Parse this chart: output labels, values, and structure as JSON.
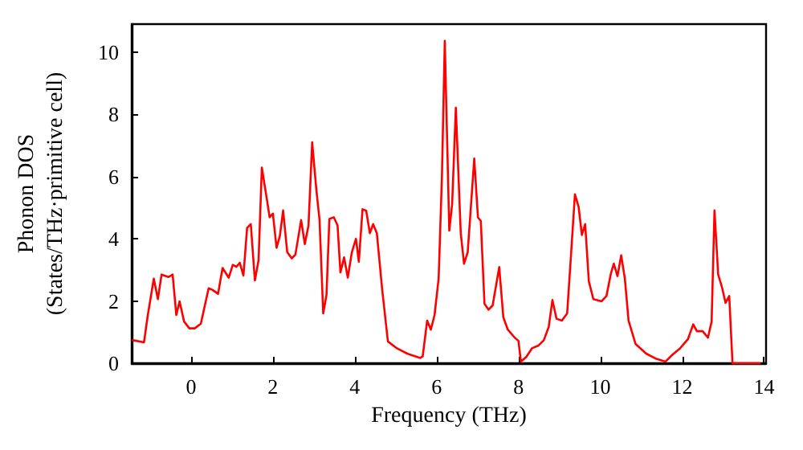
{
  "chart_data": {
    "type": "line",
    "xlabel": "Frequency (THz)",
    "ylabel": "Phonon DOS\n(States/THz·primitive cell)",
    "xlim": [
      -1.45,
      14.05
    ],
    "xticks": [
      0,
      2,
      4,
      6,
      8,
      10,
      12,
      14
    ],
    "ylim": [
      0,
      10.9
    ],
    "yticks": [
      0,
      2,
      4,
      6,
      8,
      10
    ],
    "marker": "none",
    "line_style": "solid",
    "series": [
      {
        "color": "#ff0000",
        "x": [
          -1.42,
          -1.15,
          -1.06,
          -0.91,
          -0.81,
          -0.72,
          -0.55,
          -0.45,
          -0.36,
          -0.28,
          -0.17,
          -0.04,
          0.09,
          0.24,
          0.43,
          0.52,
          0.66,
          0.77,
          0.92,
          1.02,
          1.11,
          1.19,
          1.28,
          1.37,
          1.46,
          1.56,
          1.65,
          1.73,
          1.86,
          1.92,
          2.0,
          2.09,
          2.17,
          2.25,
          2.35,
          2.46,
          2.55,
          2.69,
          2.78,
          2.87,
          2.96,
          3.06,
          3.14,
          3.23,
          3.31,
          3.38,
          3.49,
          3.58,
          3.65,
          3.74,
          3.83,
          3.93,
          4.03,
          4.1,
          4.19,
          4.28,
          4.37,
          4.45,
          4.54,
          4.67,
          4.81,
          5.03,
          5.28,
          5.6,
          5.66,
          5.77,
          5.86,
          5.95,
          6.05,
          6.13,
          6.2,
          6.31,
          6.38,
          6.47,
          6.59,
          6.67,
          6.76,
          6.92,
          7.01,
          7.08,
          7.17,
          7.27,
          7.37,
          7.53,
          7.63,
          7.74,
          7.91,
          8.0,
          8.06,
          8.19,
          8.33,
          8.49,
          8.62,
          8.74,
          8.83,
          8.93,
          9.06,
          9.19,
          9.28,
          9.38,
          9.47,
          9.55,
          9.63,
          9.72,
          9.83,
          10.03,
          10.15,
          10.26,
          10.33,
          10.42,
          10.51,
          10.6,
          10.69,
          10.86,
          11.12,
          11.37,
          11.59,
          11.76,
          11.95,
          12.14,
          12.27,
          12.36,
          12.5,
          12.63,
          12.72,
          12.79,
          12.88,
          12.97,
          13.06,
          13.15,
          13.23,
          13.9
        ],
        "values": [
          0.74,
          0.67,
          1.51,
          2.72,
          2.06,
          2.85,
          2.77,
          2.85,
          1.55,
          1.99,
          1.34,
          1.12,
          1.12,
          1.27,
          2.41,
          2.36,
          2.23,
          3.06,
          2.75,
          3.16,
          3.1,
          3.23,
          2.82,
          4.35,
          4.47,
          2.66,
          3.31,
          6.29,
          5.21,
          4.69,
          4.81,
          3.71,
          4.09,
          4.91,
          3.57,
          3.37,
          3.49,
          4.6,
          3.83,
          4.43,
          7.1,
          5.6,
          4.6,
          1.6,
          2.2,
          4.64,
          4.69,
          4.43,
          2.92,
          3.4,
          2.75,
          3.57,
          4.0,
          3.26,
          4.95,
          4.9,
          4.18,
          4.47,
          4.18,
          2.37,
          0.7,
          0.48,
          0.31,
          0.17,
          0.22,
          1.37,
          1.08,
          1.55,
          2.72,
          5.98,
          10.36,
          4.26,
          5.12,
          8.21,
          4.18,
          3.2,
          3.57,
          6.58,
          4.69,
          4.57,
          1.91,
          1.72,
          1.86,
          3.09,
          1.48,
          1.08,
          0.82,
          0.72,
          0.05,
          0.2,
          0.48,
          0.57,
          0.74,
          1.17,
          2.03,
          1.43,
          1.37,
          1.6,
          3.4,
          5.43,
          5.03,
          4.12,
          4.47,
          2.63,
          2.06,
          1.99,
          2.16,
          2.89,
          3.2,
          2.8,
          3.47,
          2.72,
          1.37,
          0.62,
          0.31,
          0.14,
          0.05,
          0.27,
          0.48,
          0.77,
          1.25,
          1.03,
          1.03,
          0.82,
          1.34,
          4.91,
          2.85,
          2.46,
          1.94,
          2.16,
          0,
          0
        ]
      }
    ]
  }
}
